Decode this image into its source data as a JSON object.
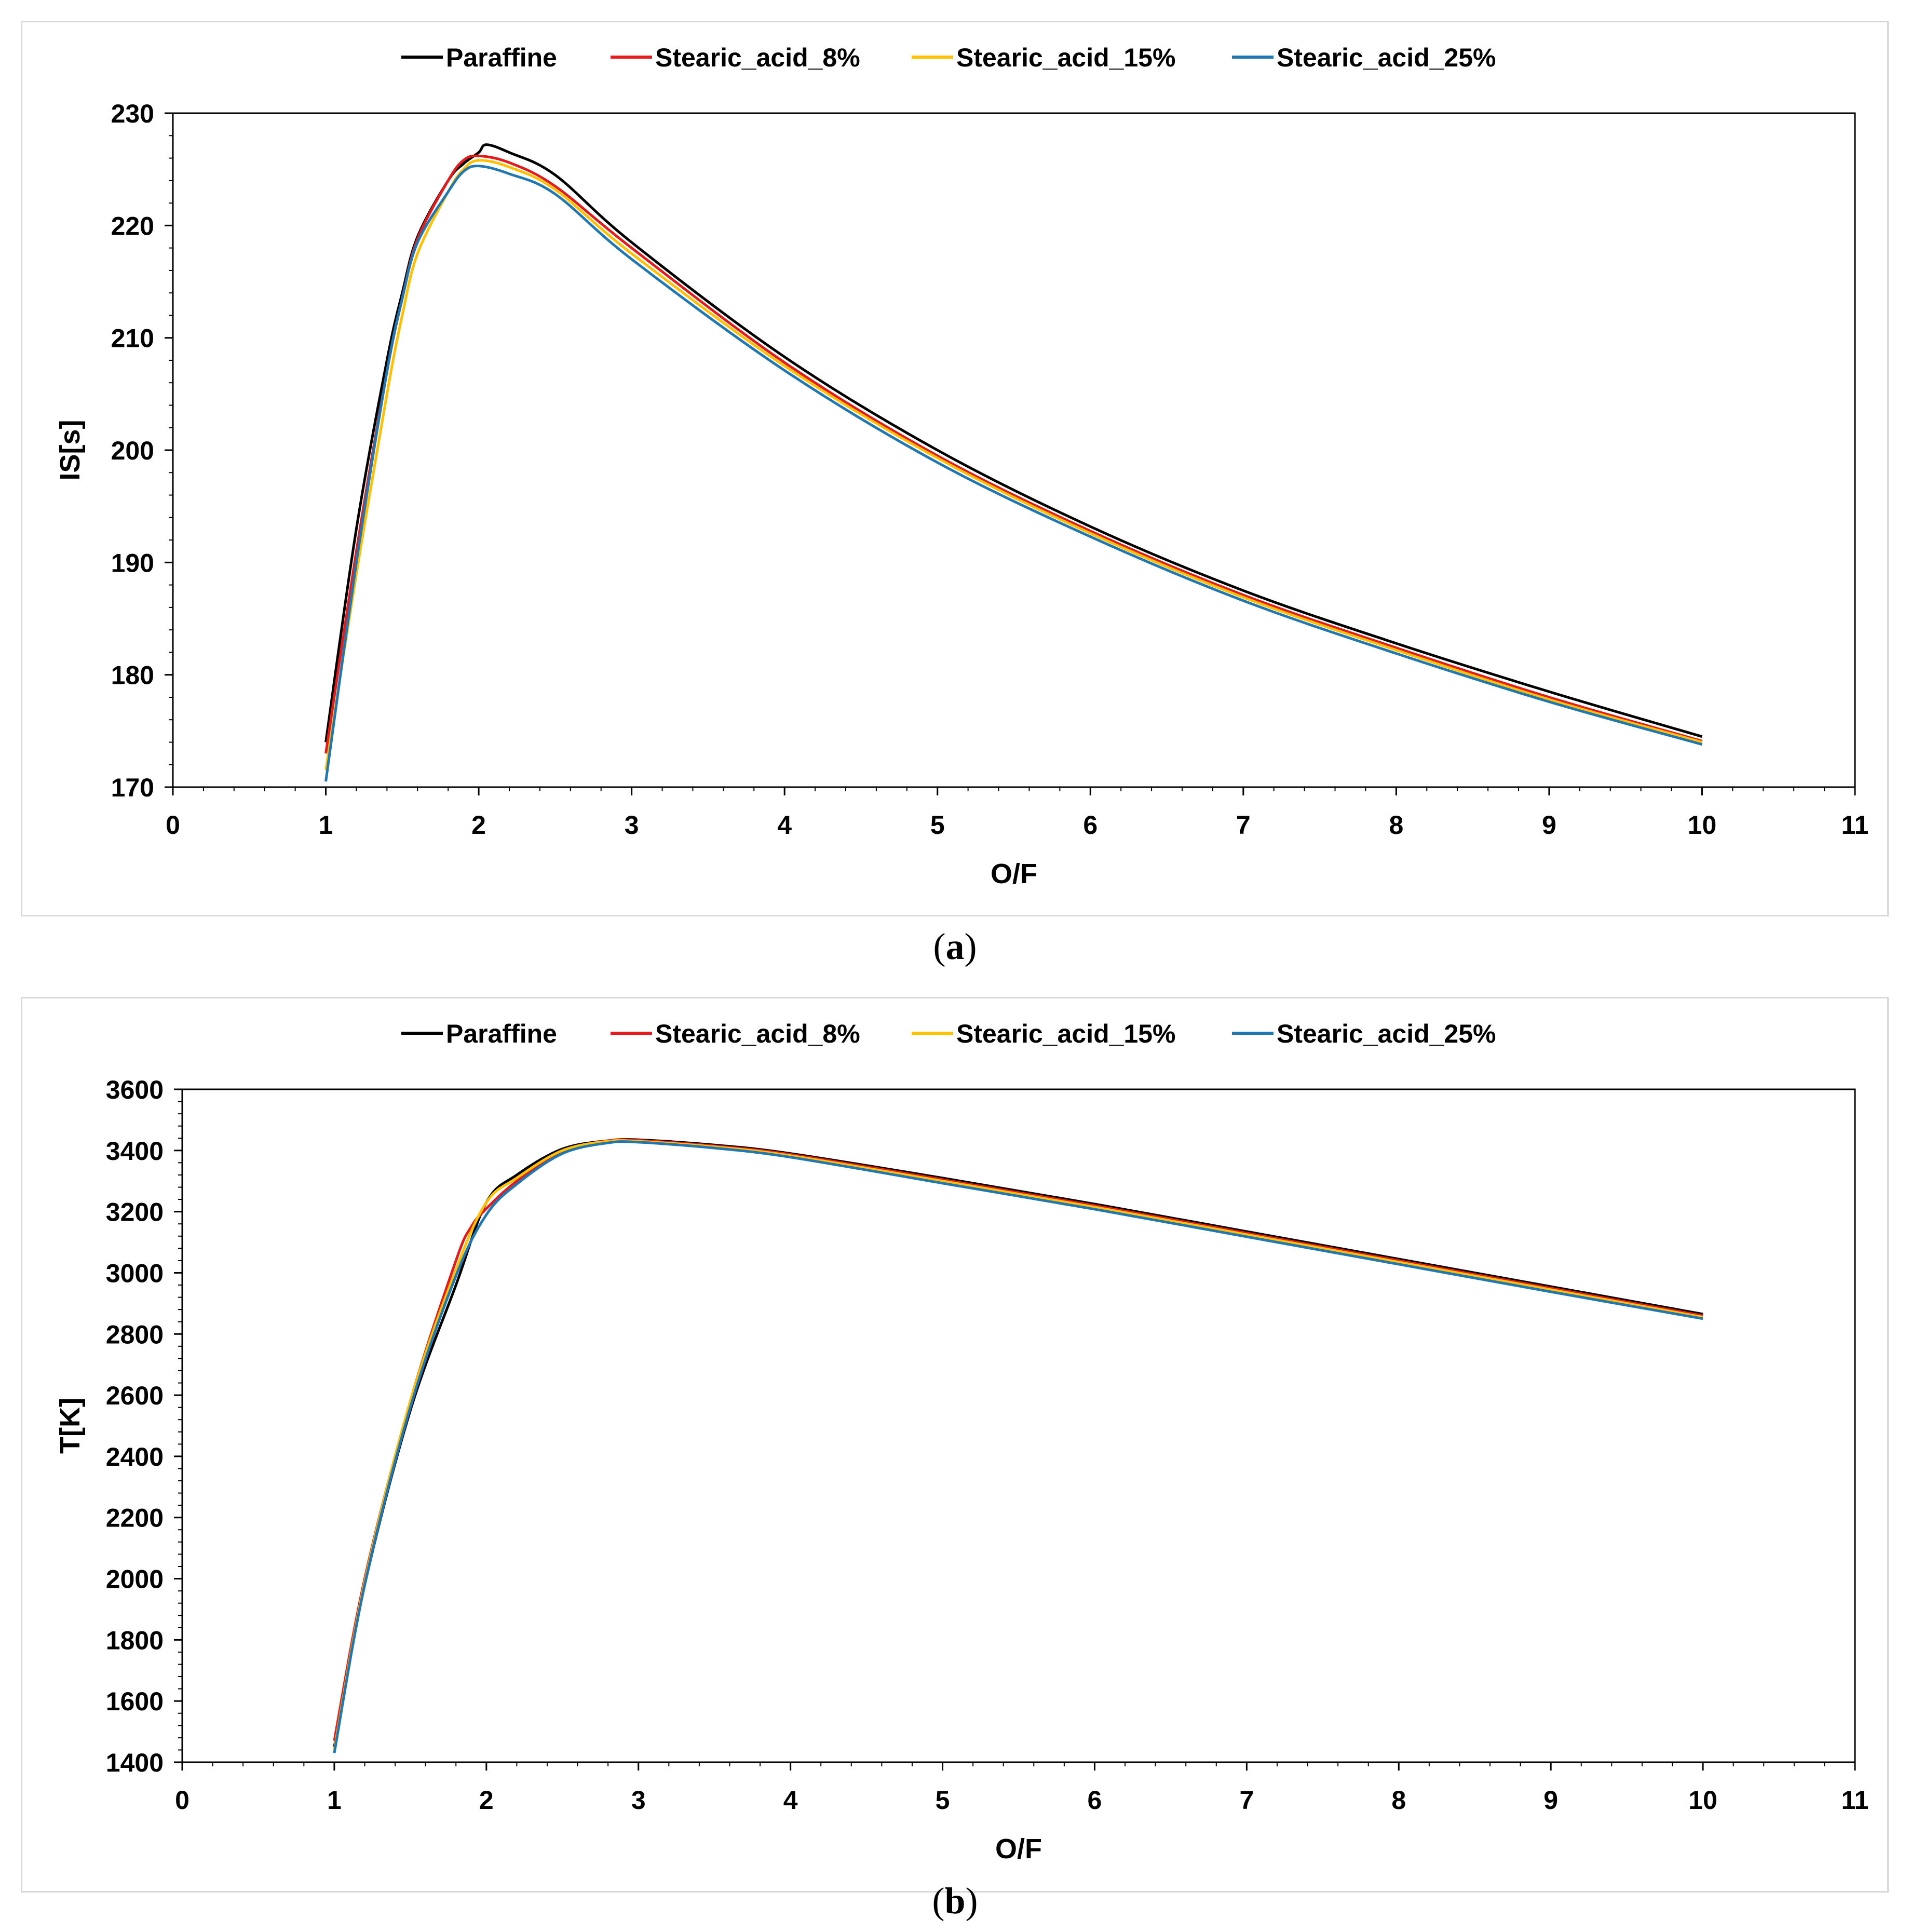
{
  "legend": [
    {
      "name": "Paraffine",
      "color": "#000000"
    },
    {
      "name": "Stearic_acid_8%",
      "color": "#e41a1c"
    },
    {
      "name": "Stearic_acid_15%",
      "color": "#ffc000"
    },
    {
      "name": "Stearic_acid_25%",
      "color": "#1f77b4"
    }
  ],
  "captions": {
    "a_open": "(",
    "a_letter": "a",
    "a_close": ")",
    "b_open": "(",
    "b_letter": "b",
    "b_close": ")"
  },
  "chart_data": [
    {
      "id": "a",
      "type": "line",
      "xlabel": "O/F",
      "ylabel": "IS[s]",
      "xlim": [
        0,
        11
      ],
      "ylim": [
        170,
        230
      ],
      "xticks": [
        0,
        1,
        2,
        3,
        4,
        5,
        6,
        7,
        8,
        9,
        10,
        11
      ],
      "yticks": [
        170,
        180,
        190,
        200,
        210,
        220,
        230
      ],
      "series": [
        {
          "name": "Paraffine",
          "color": "#000000",
          "x": [
            1,
            1.2,
            1.4,
            1.5,
            1.6,
            1.8,
            1.9,
            2,
            2.05,
            2.2,
            2.5,
            3,
            4,
            5,
            6,
            7,
            8,
            9,
            10
          ],
          "y": [
            174,
            193,
            208,
            214,
            219,
            224,
            225.5,
            226.5,
            227.2,
            226.5,
            224.5,
            218.5,
            208.3,
            200,
            193.2,
            187.5,
            182.8,
            178.5,
            174.5
          ]
        },
        {
          "name": "Stearic_acid_8%",
          "color": "#e41a1c",
          "x": [
            1,
            1.2,
            1.4,
            1.5,
            1.6,
            1.8,
            1.9,
            2,
            2.2,
            2.5,
            3,
            4,
            5,
            6,
            7,
            8,
            9,
            10
          ],
          "y": [
            173,
            191,
            207,
            213.5,
            218.8,
            224,
            225.8,
            226.2,
            225.6,
            223.5,
            218,
            207.8,
            199.5,
            192.8,
            187.1,
            182.4,
            178,
            174.1
          ]
        },
        {
          "name": "Stearic_acid_15%",
          "color": "#ffc000",
          "x": [
            1,
            1.2,
            1.4,
            1.5,
            1.6,
            1.8,
            1.9,
            2,
            2.2,
            2.5,
            3,
            4,
            5,
            6,
            7,
            8,
            9,
            10
          ],
          "y": [
            171.5,
            189,
            205,
            212,
            217.5,
            223,
            225,
            225.8,
            225.2,
            223.2,
            217.5,
            207.5,
            199.3,
            192.6,
            186.9,
            182.2,
            177.8,
            174
          ]
        },
        {
          "name": "Stearic_acid_25%",
          "color": "#1f77b4",
          "x": [
            1,
            1.2,
            1.4,
            1.5,
            1.6,
            1.8,
            1.9,
            2,
            2.2,
            2.5,
            3,
            4,
            5,
            6,
            7,
            8,
            9,
            10
          ],
          "y": [
            170.5,
            190,
            207,
            213.5,
            218.5,
            223,
            224.8,
            225.3,
            224.6,
            222.8,
            217,
            207.1,
            198.9,
            192.3,
            186.6,
            181.9,
            177.6,
            173.8
          ]
        }
      ]
    },
    {
      "id": "b",
      "type": "line",
      "xlabel": "O/F",
      "ylabel": "T[K]",
      "xlim": [
        0,
        11
      ],
      "ylim": [
        1400,
        3600
      ],
      "xticks": [
        0,
        1,
        2,
        3,
        4,
        5,
        6,
        7,
        8,
        9,
        10,
        11
      ],
      "yticks": [
        1400,
        1600,
        1800,
        2000,
        2200,
        2400,
        2600,
        2800,
        3000,
        3200,
        3400,
        3600
      ],
      "series": [
        {
          "name": "Paraffine",
          "color": "#000000",
          "x": [
            1,
            1.2,
            1.5,
            1.8,
            2,
            2.2,
            2.5,
            2.8,
            3,
            3.5,
            4,
            5,
            6,
            7,
            8,
            9,
            10
          ],
          "y": [
            1450,
            1980,
            2550,
            2960,
            3230,
            3320,
            3405,
            3432,
            3435,
            3418,
            3390,
            3310,
            3225,
            3135,
            3045,
            2955,
            2865
          ]
        },
        {
          "name": "Stearic_acid_8%",
          "color": "#e41a1c",
          "x": [
            1,
            1.2,
            1.5,
            1.8,
            1.9,
            2,
            2.2,
            2.5,
            2.8,
            3,
            3.5,
            4,
            5,
            6,
            7,
            8,
            9,
            10
          ],
          "y": [
            1470,
            2000,
            2580,
            3040,
            3150,
            3210,
            3300,
            3398,
            3432,
            3433,
            3415,
            3387,
            3305,
            3220,
            3130,
            3040,
            2950,
            2860
          ]
        },
        {
          "name": "Stearic_acid_15%",
          "color": "#ffc000",
          "x": [
            1,
            1.2,
            1.5,
            1.8,
            2,
            2.2,
            2.5,
            2.8,
            3,
            3.5,
            4,
            5,
            6,
            7,
            8,
            9,
            10
          ],
          "y": [
            1440,
            1990,
            2580,
            3010,
            3230,
            3310,
            3400,
            3430,
            3430,
            3412,
            3383,
            3300,
            3215,
            3125,
            3035,
            2945,
            2855
          ]
        },
        {
          "name": "Stearic_acid_25%",
          "color": "#1f77b4",
          "x": [
            1,
            1.2,
            1.5,
            1.8,
            2,
            2.2,
            2.5,
            2.8,
            3,
            3.5,
            4,
            5,
            6,
            7,
            8,
            9,
            10
          ],
          "y": [
            1430,
            1980,
            2560,
            2990,
            3190,
            3290,
            3390,
            3425,
            3427,
            3408,
            3378,
            3293,
            3208,
            3118,
            3028,
            2938,
            2850
          ]
        }
      ]
    }
  ]
}
